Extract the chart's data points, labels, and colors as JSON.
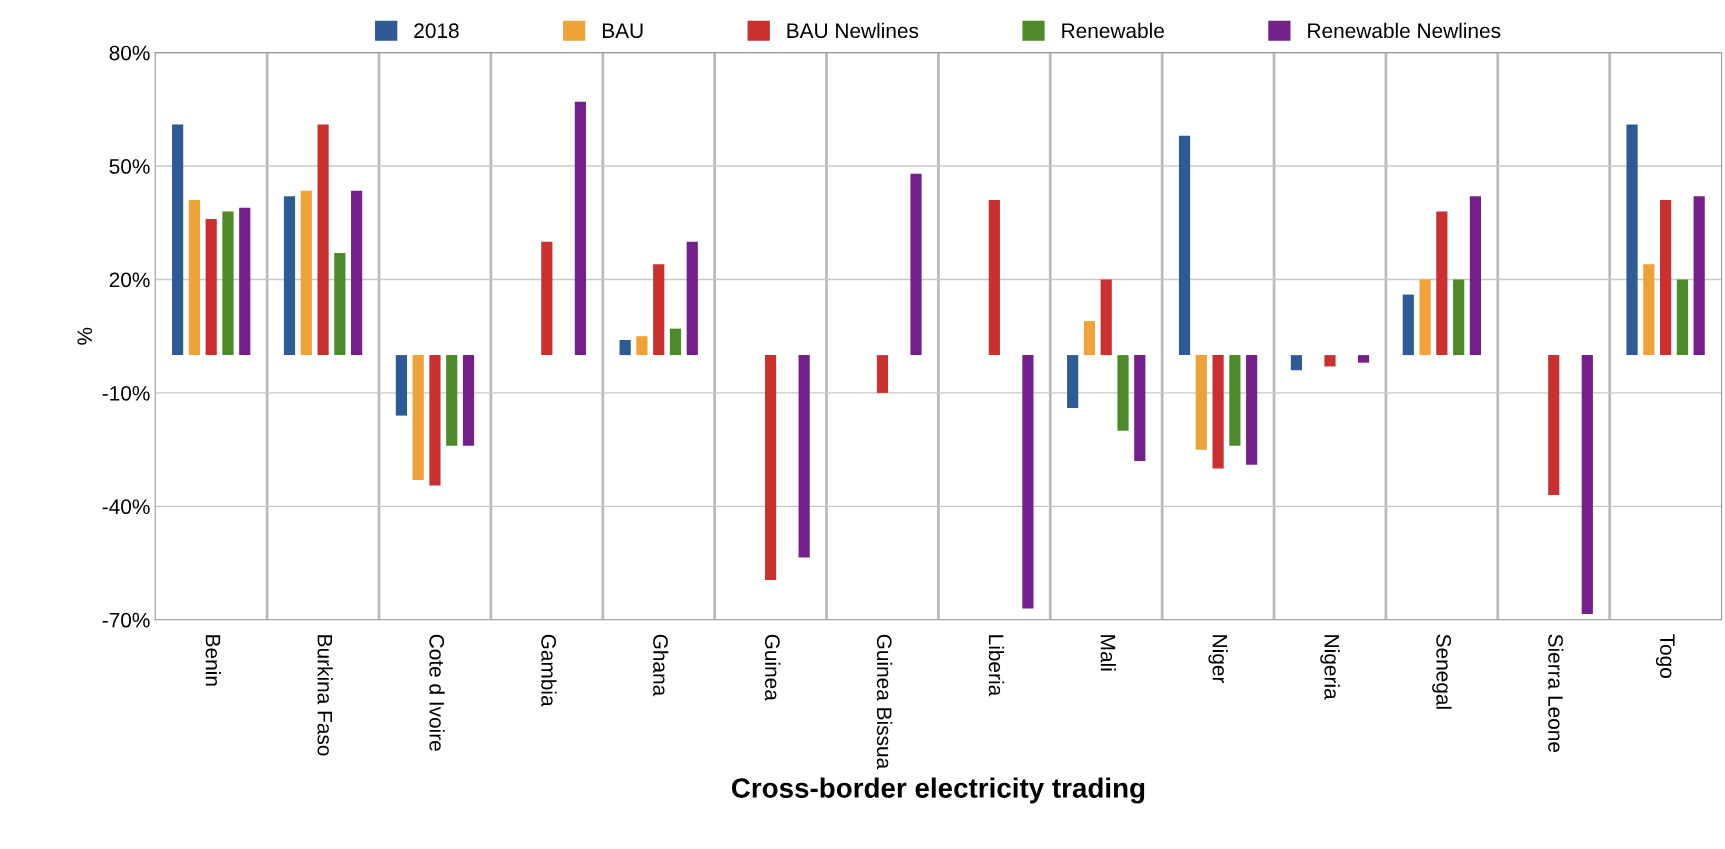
{
  "chart_data": {
    "type": "bar",
    "xlabel": "Cross-border electricity trading",
    "ylabel": "%",
    "categories": [
      "Benin",
      "Burkina Faso",
      "Cote d Ivoire",
      "Gambia",
      "Ghana",
      "Guinea",
      "Guinea Bissua",
      "Liberia",
      "Mali",
      "Niger",
      "Nigeria",
      "Senegal",
      "Sierra Leone",
      "Togo"
    ],
    "series": [
      {
        "name": "2018",
        "color": "#2e5b94",
        "values": [
          61,
          42,
          -16,
          null,
          4,
          null,
          null,
          null,
          -14,
          58,
          -4,
          16,
          null,
          61
        ]
      },
      {
        "name": "BAU",
        "color": "#eda33a",
        "values": [
          41,
          43.5,
          -33,
          null,
          5,
          null,
          null,
          null,
          9,
          -25,
          null,
          20,
          null,
          24
        ]
      },
      {
        "name": "BAU Newlines",
        "color": "#c8312f",
        "values": [
          36,
          61,
          -34.5,
          30,
          24,
          -59.5,
          -10,
          41,
          20,
          -30,
          -3,
          38,
          -37,
          41
        ]
      },
      {
        "name": "Renewable",
        "color": "#4e8a2a",
        "values": [
          38,
          27,
          -24,
          null,
          7,
          null,
          null,
          null,
          -20,
          -24,
          null,
          20,
          null,
          20
        ]
      },
      {
        "name": "Renewable Newlines",
        "color": "#74208a",
        "values": [
          39,
          43.5,
          -24,
          67,
          30,
          -53.5,
          48,
          -67,
          -28,
          -29,
          -2,
          42,
          -68.5,
          42
        ]
      }
    ],
    "ylim": [
      -70,
      80
    ],
    "yticks": [
      {
        "value": -70,
        "label": "-70%"
      },
      {
        "value": -40,
        "label": "-40%"
      },
      {
        "value": -10,
        "label": "-10%"
      },
      {
        "value": 20,
        "label": "20%"
      },
      {
        "value": 50,
        "label": "50%"
      },
      {
        "value": 80,
        "label": "80%"
      }
    ],
    "grid": true,
    "legend": "top"
  }
}
